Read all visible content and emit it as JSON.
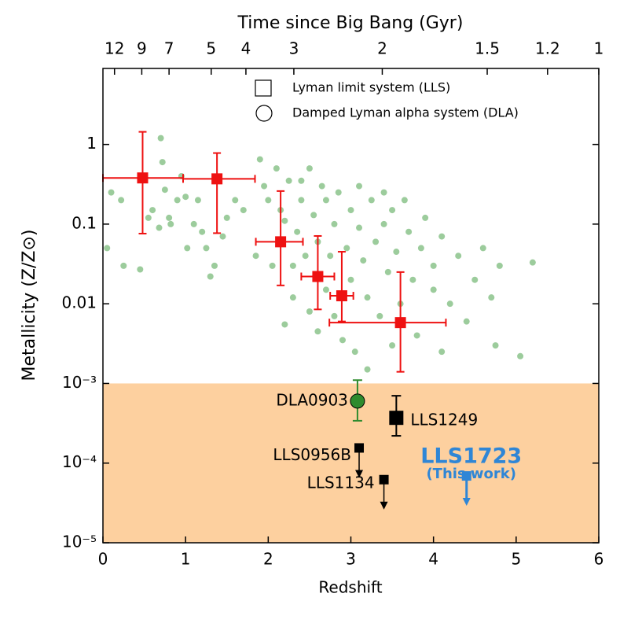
{
  "chart_data": {
    "type": "scatter",
    "title": "Time since Big Bang (Gyr)",
    "x_label": "Redshift",
    "y_label": "Metallicity (Z/Z⊙)",
    "y_scale": "log",
    "xlim": [
      0,
      6
    ],
    "ylim": [
      1e-05,
      9
    ],
    "xticks": [
      0,
      1,
      2,
      3,
      4,
      5,
      6
    ],
    "yticks": [
      {
        "value": 1e-05,
        "label": "10⁻⁵"
      },
      {
        "value": 0.0001,
        "label": "10⁻⁴"
      },
      {
        "value": 0.001,
        "label": "10⁻³"
      },
      0.01,
      0.1,
      1
    ],
    "x2ticks": [
      {
        "value": 0.14,
        "label": "12"
      },
      {
        "value": 0.47,
        "label": "9"
      },
      {
        "value": 0.8,
        "label": "7"
      },
      {
        "value": 1.31,
        "label": "5"
      },
      {
        "value": 1.73,
        "label": "4"
      },
      {
        "value": 2.31,
        "label": "3"
      },
      {
        "value": 3.38,
        "label": "2"
      },
      {
        "value": 4.65,
        "label": "1.5"
      },
      {
        "value": 5.38,
        "label": "1.2"
      },
      {
        "value": 6,
        "label": "1"
      }
    ],
    "shaded_region": {
      "ylim": [
        1e-05,
        0.001
      ],
      "color": "#fdd09f"
    },
    "legend": [
      {
        "name": "Lyman limit system (LLS)",
        "marker": "square"
      },
      {
        "name": "Damped Lyman alpha system (DLA)",
        "marker": "circle"
      }
    ],
    "sample": {
      "color": "#3a9a3a",
      "x": [
        0.05,
        0.1,
        0.22,
        0.25,
        0.45,
        0.55,
        0.6,
        0.68,
        0.7,
        0.72,
        0.75,
        0.8,
        0.82,
        0.9,
        1.0,
        1.02,
        1.1,
        1.15,
        1.2,
        1.25,
        1.3,
        1.35,
        1.5,
        1.6,
        1.7,
        1.85,
        1.9,
        1.95,
        2.0,
        2.05,
        2.1,
        2.15,
        2.2,
        2.2,
        2.25,
        2.3,
        2.3,
        2.35,
        2.4,
        2.45,
        2.5,
        2.5,
        2.55,
        2.6,
        2.6,
        2.65,
        2.7,
        2.7,
        2.75,
        2.8,
        2.8,
        2.85,
        2.9,
        2.95,
        3.0,
        3.0,
        3.05,
        3.1,
        3.1,
        3.15,
        3.2,
        3.2,
        3.25,
        3.3,
        3.35,
        3.4,
        3.45,
        3.5,
        3.5,
        3.55,
        3.6,
        3.7,
        3.75,
        3.8,
        3.85,
        3.9,
        4.0,
        4.0,
        4.1,
        4.1,
        4.2,
        4.3,
        4.4,
        4.5,
        4.6,
        4.7,
        4.75,
        4.8,
        5.05,
        5.2,
        3.4,
        3.65,
        2.4,
        1.45,
        0.95
      ],
      "values": [
        0.05,
        0.25,
        0.2,
        0.03,
        0.027,
        0.12,
        0.15,
        0.09,
        1.2,
        0.6,
        0.27,
        0.12,
        0.1,
        0.2,
        0.22,
        0.05,
        0.1,
        0.2,
        0.08,
        0.05,
        0.022,
        0.03,
        0.12,
        0.2,
        0.15,
        0.04,
        0.65,
        0.3,
        0.2,
        0.03,
        0.5,
        0.15,
        0.11,
        0.0055,
        0.35,
        0.03,
        0.012,
        0.08,
        0.2,
        0.04,
        0.008,
        0.5,
        0.13,
        0.06,
        0.0045,
        0.3,
        0.015,
        0.2,
        0.04,
        0.1,
        0.007,
        0.25,
        0.0035,
        0.05,
        0.15,
        0.02,
        0.0025,
        0.09,
        0.3,
        0.035,
        0.0015,
        0.012,
        0.2,
        0.06,
        0.007,
        0.1,
        0.025,
        0.003,
        0.15,
        0.045,
        0.01,
        0.08,
        0.02,
        0.004,
        0.05,
        0.12,
        0.015,
        0.03,
        0.07,
        0.0025,
        0.01,
        0.04,
        0.006,
        0.02,
        0.05,
        0.012,
        0.003,
        0.03,
        0.0022,
        0.033,
        0.25,
        0.2,
        0.35,
        0.07,
        0.4
      ]
    },
    "binned": {
      "color": "#ee1111",
      "x": [
        0.48,
        1.38,
        2.15,
        2.6,
        2.89,
        3.6
      ],
      "x_low": [
        0,
        0.97,
        1.85,
        2.4,
        2.75,
        2.74
      ],
      "x_high": [
        0.97,
        1.84,
        2.42,
        2.8,
        3.03,
        4.15
      ],
      "values": [
        0.38,
        0.37,
        0.06,
        0.022,
        0.0126,
        0.0058
      ],
      "y_low": [
        0.076,
        0.077,
        0.017,
        0.0085,
        0.006,
        0.0014
      ],
      "y_high": [
        1.44,
        0.78,
        0.26,
        0.071,
        0.045,
        0.025
      ]
    },
    "objects": [
      {
        "name": "DLA0903",
        "x": 3.08,
        "value": 0.0006,
        "y_low": 0.00034,
        "y_high": 0.0011,
        "marker": "circle",
        "color": "#2e8b2e"
      },
      {
        "name": "LLS1249",
        "x": 3.55,
        "value": 0.00037,
        "y_low": 0.00022,
        "y_high": 0.0007,
        "marker": "square",
        "color": "#000000"
      },
      {
        "name": "LLS0956B",
        "x": 3.1,
        "value": 0.000155,
        "upper_limit": true,
        "marker": "square",
        "color": "#000000"
      },
      {
        "name": "LLS1134",
        "x": 3.4,
        "value": 6.2e-05,
        "upper_limit": true,
        "marker": "square",
        "color": "#000000"
      },
      {
        "name": "LLS1723",
        "note": "(This work)",
        "x": 4.4,
        "value": 6.9e-05,
        "upper_limit": true,
        "marker": "square",
        "color": "#2f86d6"
      }
    ]
  }
}
